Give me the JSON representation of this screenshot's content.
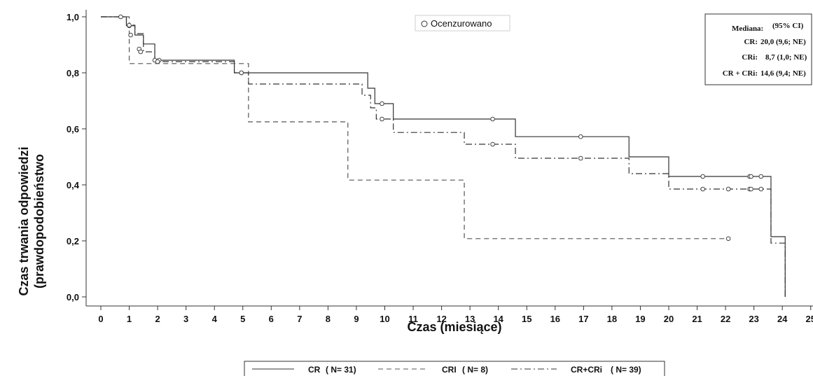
{
  "chart_data": {
    "type": "line",
    "xlabel": "Czas (miesiące)",
    "ylabel_line1": "Czas trwania odpowiedzi",
    "ylabel_line2": "(prawdopodobieństwo",
    "x_ticks": [
      "0",
      "1",
      "2",
      "3",
      "4",
      "5",
      "6",
      "7",
      "8",
      "9",
      "10",
      "11",
      "12",
      "13",
      "14",
      "15",
      "16",
      "17",
      "18",
      "19",
      "20",
      "21",
      "22",
      "23",
      "24",
      "25"
    ],
    "y_ticks": [
      "0,0",
      "0,2",
      "0,4",
      "0,6",
      "0,8",
      "1,0"
    ],
    "y_tick_values": [
      0,
      0.2,
      0.4,
      0.6,
      0.8,
      1.0
    ],
    "xlim": [
      0,
      25
    ],
    "ylim": [
      0,
      1
    ],
    "censor_legend": "Ocenzurowano",
    "median_box": {
      "header_label": "Mediana:",
      "header_ci": "(95%  CI)",
      "rows": [
        {
          "label": "CR:",
          "value": "20,0 (9,6;  NE)"
        },
        {
          "label": "CRi:",
          "value": "8,7 (1,0;  NE)"
        },
        {
          "label": "CR + CRi:",
          "value": "14,6 (9,4;  NE)"
        }
      ]
    },
    "bottom_legend": [
      {
        "name": "CR",
        "n": "( N= 31)"
      },
      {
        "name": "CRI",
        "n": "( N= 8)"
      },
      {
        "name": "CR+CRi",
        "n": "( N= 39)"
      }
    ],
    "series": [
      {
        "name": "CR",
        "color": "#333333",
        "dash": "solid",
        "steps": [
          [
            0,
            1.0
          ],
          [
            0.9,
            0.968
          ],
          [
            1.2,
            0.935
          ],
          [
            1.5,
            0.903
          ],
          [
            1.9,
            0.845
          ],
          [
            4.7,
            0.8
          ],
          [
            9.4,
            0.745
          ],
          [
            9.65,
            0.69
          ],
          [
            10.3,
            0.635
          ],
          [
            14.6,
            0.572
          ],
          [
            18.6,
            0.5
          ],
          [
            20.0,
            0.43
          ],
          [
            23.6,
            0.215
          ],
          [
            24.1,
            0.0
          ]
        ],
        "end_x": 24.1,
        "censored": [
          [
            0.7,
            1.0
          ],
          [
            1.0,
            0.968
          ],
          [
            1.05,
            0.935
          ],
          [
            1.35,
            0.885
          ],
          [
            1.9,
            0.845
          ],
          [
            2.05,
            0.845
          ],
          [
            4.95,
            0.8
          ],
          [
            9.9,
            0.69
          ],
          [
            13.8,
            0.635
          ],
          [
            16.9,
            0.572
          ],
          [
            21.2,
            0.43
          ],
          [
            22.85,
            0.43
          ],
          [
            22.9,
            0.43
          ],
          [
            23.25,
            0.43
          ]
        ]
      },
      {
        "name": "CRI",
        "color": "#555555",
        "dash": "dashed",
        "steps": [
          [
            0,
            1.0
          ],
          [
            1.0,
            0.833
          ],
          [
            5.2,
            0.625
          ],
          [
            8.7,
            0.417
          ],
          [
            12.8,
            0.208
          ]
        ],
        "end_x": 22.1,
        "censored": [
          [
            22.1,
            0.208
          ]
        ]
      },
      {
        "name": "CR+CRi",
        "color": "#333333",
        "dash": "dashdot",
        "steps": [
          [
            0,
            1.0
          ],
          [
            0.9,
            0.97
          ],
          [
            1.2,
            0.94
          ],
          [
            1.5,
            0.875
          ],
          [
            1.9,
            0.84
          ],
          [
            4.7,
            0.8
          ],
          [
            5.2,
            0.76
          ],
          [
            9.2,
            0.72
          ],
          [
            9.5,
            0.675
          ],
          [
            9.7,
            0.635
          ],
          [
            10.3,
            0.587
          ],
          [
            12.8,
            0.545
          ],
          [
            14.6,
            0.495
          ],
          [
            18.6,
            0.44
          ],
          [
            20.0,
            0.385
          ],
          [
            23.6,
            0.192
          ],
          [
            24.1,
            0.0
          ]
        ],
        "end_x": 24.1,
        "censored": [
          [
            1.0,
            0.97
          ],
          [
            1.4,
            0.875
          ],
          [
            2.0,
            0.84
          ],
          [
            4.95,
            0.8
          ],
          [
            9.9,
            0.635
          ],
          [
            13.8,
            0.545
          ],
          [
            16.9,
            0.495
          ],
          [
            21.2,
            0.385
          ],
          [
            22.1,
            0.385
          ],
          [
            22.85,
            0.385
          ],
          [
            22.9,
            0.385
          ],
          [
            23.25,
            0.385
          ]
        ]
      }
    ]
  }
}
